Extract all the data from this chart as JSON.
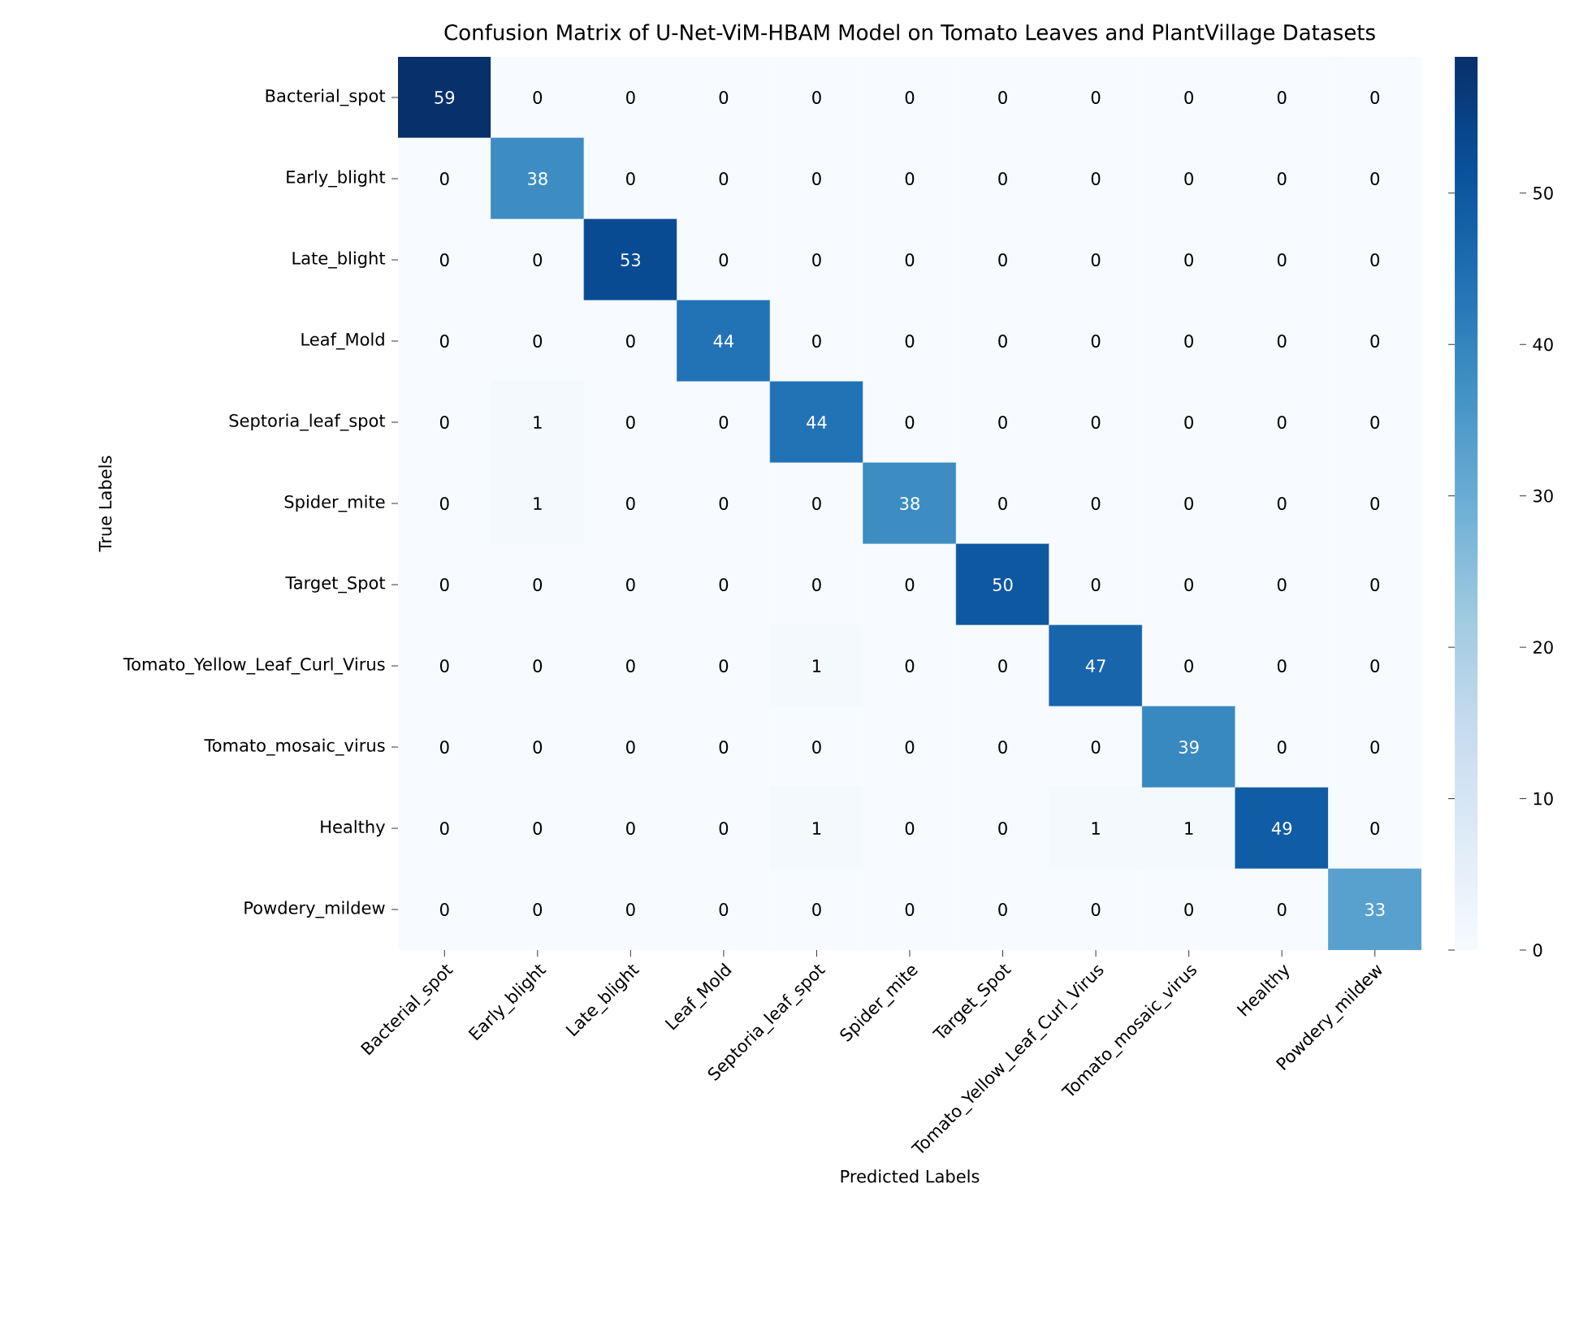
{
  "chart_data": {
    "type": "heatmap",
    "title": "Confusion Matrix of U-Net-ViM-HBAM Model on Tomato Leaves and PlantVillage Datasets",
    "xlabel": "Predicted Labels",
    "ylabel": "True Labels",
    "categories": [
      "Bacterial_spot",
      "Early_blight",
      "Late_blight",
      "Leaf_Mold",
      "Septoria_leaf_spot",
      "Spider_mite",
      "Target_Spot",
      "Tomato_Yellow_Leaf_Curl_Virus",
      "Tomato_mosaic_virus",
      "Healthy",
      "Powdery_mildew"
    ],
    "y_categories": [
      "Bacterial_spot",
      "Early_blight",
      "Late_blight",
      "Leaf_Mold",
      "Septoria_leaf_spot",
      "Spider_mite",
      "Target_Spot",
      "Tomato_Yellow_Leaf_Curl_Virus",
      "Tomato_mosaic_virus",
      "Healthy",
      "Powdery_mildew"
    ],
    "cells": [
      [
        59,
        0,
        0,
        0,
        0,
        0,
        0,
        0,
        0,
        0,
        0
      ],
      [
        0,
        38,
        0,
        0,
        0,
        0,
        0,
        0,
        0,
        0,
        0
      ],
      [
        0,
        0,
        53,
        0,
        0,
        0,
        0,
        0,
        0,
        0,
        0
      ],
      [
        0,
        0,
        0,
        44,
        0,
        0,
        0,
        0,
        0,
        0,
        0
      ],
      [
        0,
        1,
        0,
        0,
        44,
        0,
        0,
        0,
        0,
        0,
        0
      ],
      [
        0,
        1,
        0,
        0,
        0,
        38,
        0,
        0,
        0,
        0,
        0
      ],
      [
        0,
        0,
        0,
        0,
        0,
        0,
        50,
        0,
        0,
        0,
        0
      ],
      [
        0,
        0,
        0,
        0,
        1,
        0,
        0,
        47,
        0,
        0,
        0
      ],
      [
        0,
        0,
        0,
        0,
        0,
        0,
        0,
        0,
        39,
        0,
        0
      ],
      [
        0,
        0,
        0,
        0,
        1,
        0,
        0,
        1,
        1,
        49,
        0
      ],
      [
        0,
        0,
        0,
        0,
        0,
        0,
        0,
        0,
        0,
        0,
        33
      ]
    ],
    "clim": [
      0,
      59
    ],
    "cticks": [
      0,
      10,
      20,
      30,
      40,
      50
    ],
    "data_labels": true
  }
}
